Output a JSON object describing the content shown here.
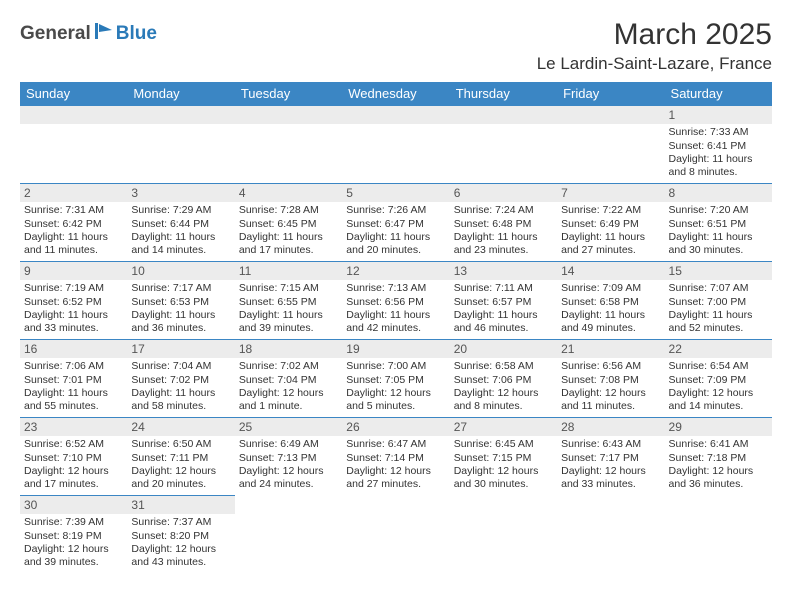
{
  "logo": {
    "dark": "General",
    "blue": "Blue"
  },
  "title": "March 2025",
  "location": "Le Lardin-Saint-Lazare, France",
  "colors": {
    "header_bg": "#3b86c4",
    "header_fg": "#ffffff",
    "daynum_bg": "#ececec",
    "border": "#3b86c4"
  },
  "weekdays": [
    "Sunday",
    "Monday",
    "Tuesday",
    "Wednesday",
    "Thursday",
    "Friday",
    "Saturday"
  ],
  "weeks": [
    [
      null,
      null,
      null,
      null,
      null,
      null,
      {
        "n": "1",
        "sr": "Sunrise: 7:33 AM",
        "ss": "Sunset: 6:41 PM",
        "dl": "Daylight: 11 hours and 8 minutes."
      }
    ],
    [
      {
        "n": "2",
        "sr": "Sunrise: 7:31 AM",
        "ss": "Sunset: 6:42 PM",
        "dl": "Daylight: 11 hours and 11 minutes."
      },
      {
        "n": "3",
        "sr": "Sunrise: 7:29 AM",
        "ss": "Sunset: 6:44 PM",
        "dl": "Daylight: 11 hours and 14 minutes."
      },
      {
        "n": "4",
        "sr": "Sunrise: 7:28 AM",
        "ss": "Sunset: 6:45 PM",
        "dl": "Daylight: 11 hours and 17 minutes."
      },
      {
        "n": "5",
        "sr": "Sunrise: 7:26 AM",
        "ss": "Sunset: 6:47 PM",
        "dl": "Daylight: 11 hours and 20 minutes."
      },
      {
        "n": "6",
        "sr": "Sunrise: 7:24 AM",
        "ss": "Sunset: 6:48 PM",
        "dl": "Daylight: 11 hours and 23 minutes."
      },
      {
        "n": "7",
        "sr": "Sunrise: 7:22 AM",
        "ss": "Sunset: 6:49 PM",
        "dl": "Daylight: 11 hours and 27 minutes."
      },
      {
        "n": "8",
        "sr": "Sunrise: 7:20 AM",
        "ss": "Sunset: 6:51 PM",
        "dl": "Daylight: 11 hours and 30 minutes."
      }
    ],
    [
      {
        "n": "9",
        "sr": "Sunrise: 7:19 AM",
        "ss": "Sunset: 6:52 PM",
        "dl": "Daylight: 11 hours and 33 minutes."
      },
      {
        "n": "10",
        "sr": "Sunrise: 7:17 AM",
        "ss": "Sunset: 6:53 PM",
        "dl": "Daylight: 11 hours and 36 minutes."
      },
      {
        "n": "11",
        "sr": "Sunrise: 7:15 AM",
        "ss": "Sunset: 6:55 PM",
        "dl": "Daylight: 11 hours and 39 minutes."
      },
      {
        "n": "12",
        "sr": "Sunrise: 7:13 AM",
        "ss": "Sunset: 6:56 PM",
        "dl": "Daylight: 11 hours and 42 minutes."
      },
      {
        "n": "13",
        "sr": "Sunrise: 7:11 AM",
        "ss": "Sunset: 6:57 PM",
        "dl": "Daylight: 11 hours and 46 minutes."
      },
      {
        "n": "14",
        "sr": "Sunrise: 7:09 AM",
        "ss": "Sunset: 6:58 PM",
        "dl": "Daylight: 11 hours and 49 minutes."
      },
      {
        "n": "15",
        "sr": "Sunrise: 7:07 AM",
        "ss": "Sunset: 7:00 PM",
        "dl": "Daylight: 11 hours and 52 minutes."
      }
    ],
    [
      {
        "n": "16",
        "sr": "Sunrise: 7:06 AM",
        "ss": "Sunset: 7:01 PM",
        "dl": "Daylight: 11 hours and 55 minutes."
      },
      {
        "n": "17",
        "sr": "Sunrise: 7:04 AM",
        "ss": "Sunset: 7:02 PM",
        "dl": "Daylight: 11 hours and 58 minutes."
      },
      {
        "n": "18",
        "sr": "Sunrise: 7:02 AM",
        "ss": "Sunset: 7:04 PM",
        "dl": "Daylight: 12 hours and 1 minute."
      },
      {
        "n": "19",
        "sr": "Sunrise: 7:00 AM",
        "ss": "Sunset: 7:05 PM",
        "dl": "Daylight: 12 hours and 5 minutes."
      },
      {
        "n": "20",
        "sr": "Sunrise: 6:58 AM",
        "ss": "Sunset: 7:06 PM",
        "dl": "Daylight: 12 hours and 8 minutes."
      },
      {
        "n": "21",
        "sr": "Sunrise: 6:56 AM",
        "ss": "Sunset: 7:08 PM",
        "dl": "Daylight: 12 hours and 11 minutes."
      },
      {
        "n": "22",
        "sr": "Sunrise: 6:54 AM",
        "ss": "Sunset: 7:09 PM",
        "dl": "Daylight: 12 hours and 14 minutes."
      }
    ],
    [
      {
        "n": "23",
        "sr": "Sunrise: 6:52 AM",
        "ss": "Sunset: 7:10 PM",
        "dl": "Daylight: 12 hours and 17 minutes."
      },
      {
        "n": "24",
        "sr": "Sunrise: 6:50 AM",
        "ss": "Sunset: 7:11 PM",
        "dl": "Daylight: 12 hours and 20 minutes."
      },
      {
        "n": "25",
        "sr": "Sunrise: 6:49 AM",
        "ss": "Sunset: 7:13 PM",
        "dl": "Daylight: 12 hours and 24 minutes."
      },
      {
        "n": "26",
        "sr": "Sunrise: 6:47 AM",
        "ss": "Sunset: 7:14 PM",
        "dl": "Daylight: 12 hours and 27 minutes."
      },
      {
        "n": "27",
        "sr": "Sunrise: 6:45 AM",
        "ss": "Sunset: 7:15 PM",
        "dl": "Daylight: 12 hours and 30 minutes."
      },
      {
        "n": "28",
        "sr": "Sunrise: 6:43 AM",
        "ss": "Sunset: 7:17 PM",
        "dl": "Daylight: 12 hours and 33 minutes."
      },
      {
        "n": "29",
        "sr": "Sunrise: 6:41 AM",
        "ss": "Sunset: 7:18 PM",
        "dl": "Daylight: 12 hours and 36 minutes."
      }
    ],
    [
      {
        "n": "30",
        "sr": "Sunrise: 7:39 AM",
        "ss": "Sunset: 8:19 PM",
        "dl": "Daylight: 12 hours and 39 minutes."
      },
      {
        "n": "31",
        "sr": "Sunrise: 7:37 AM",
        "ss": "Sunset: 8:20 PM",
        "dl": "Daylight: 12 hours and 43 minutes."
      },
      null,
      null,
      null,
      null,
      null
    ]
  ]
}
